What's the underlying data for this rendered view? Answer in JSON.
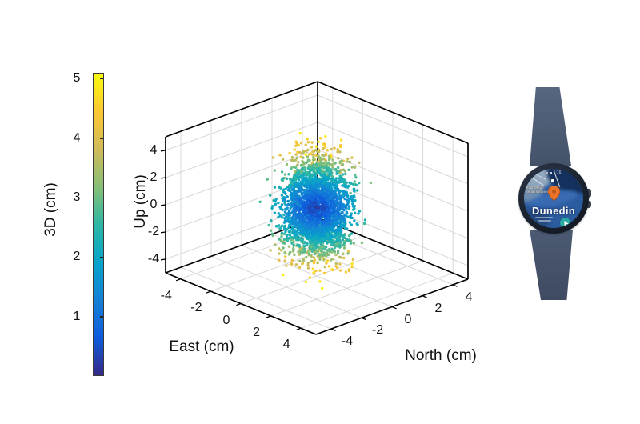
{
  "figure": {
    "background": "#ffffff"
  },
  "chart_data": {
    "type": "scatter",
    "projection": "3d",
    "title": "",
    "grid": true,
    "view": {
      "azimuth_deg": -37.5,
      "elevation_deg": 30
    },
    "axes": {
      "east": {
        "label": "East (cm)",
        "range": [
          -5,
          5
        ],
        "tick_values": [
          -4,
          -2,
          0,
          2,
          4
        ],
        "ticks": [
          "-4",
          "-2",
          "0",
          "2",
          "4"
        ]
      },
      "north": {
        "label": "North (cm)",
        "range": [
          -5,
          5
        ],
        "tick_values": [
          -4,
          -2,
          0,
          2,
          4
        ],
        "ticks": [
          "-4",
          "-2",
          "0",
          "2",
          "4"
        ]
      },
      "up": {
        "label": "Up (cm)",
        "range": [
          -5,
          5
        ],
        "tick_values": [
          -4,
          -2,
          0,
          2,
          4
        ],
        "ticks": [
          "-4",
          "-2",
          "0",
          "2",
          "4"
        ]
      }
    },
    "colorbar": {
      "label": "3D (cm)",
      "range": [
        0,
        5.1
      ],
      "tick_values": [
        1,
        2,
        3,
        4,
        5
      ],
      "ticks": [
        "1",
        "2",
        "3",
        "4",
        "5"
      ],
      "colormap": "parula",
      "stops": [
        "#352a87",
        "#0f5cdd",
        "#1481d6",
        "#06a4ca",
        "#2eb7a4",
        "#87bf77",
        "#d1bb59",
        "#fec832",
        "#f9fb0e"
      ]
    },
    "points": {
      "count": 3000,
      "center_cm": [
        0,
        0,
        0
      ],
      "sigma_cm": {
        "east": 0.82,
        "north": 0.82,
        "up": 1.9
      },
      "clip_sigma": 2.6,
      "color_by": "3d-distance-cm",
      "marker_diameter_px": 3.4,
      "seed": 11
    }
  },
  "watch": {
    "status_time": "1:16",
    "screen_title": "Dunedin",
    "poi_label_line1": "Toitū Otago",
    "poi_label_line2": "Settlers Museum",
    "pin_color": "#e8732a",
    "nav_button_color": "#2ba8a4",
    "band_color": "#4e5c75",
    "map_colors": {
      "sea_dark": "#14305c",
      "land_light": "#93a9bf",
      "water_mid": "#3a6db4",
      "water_deep": "#24497e"
    }
  }
}
